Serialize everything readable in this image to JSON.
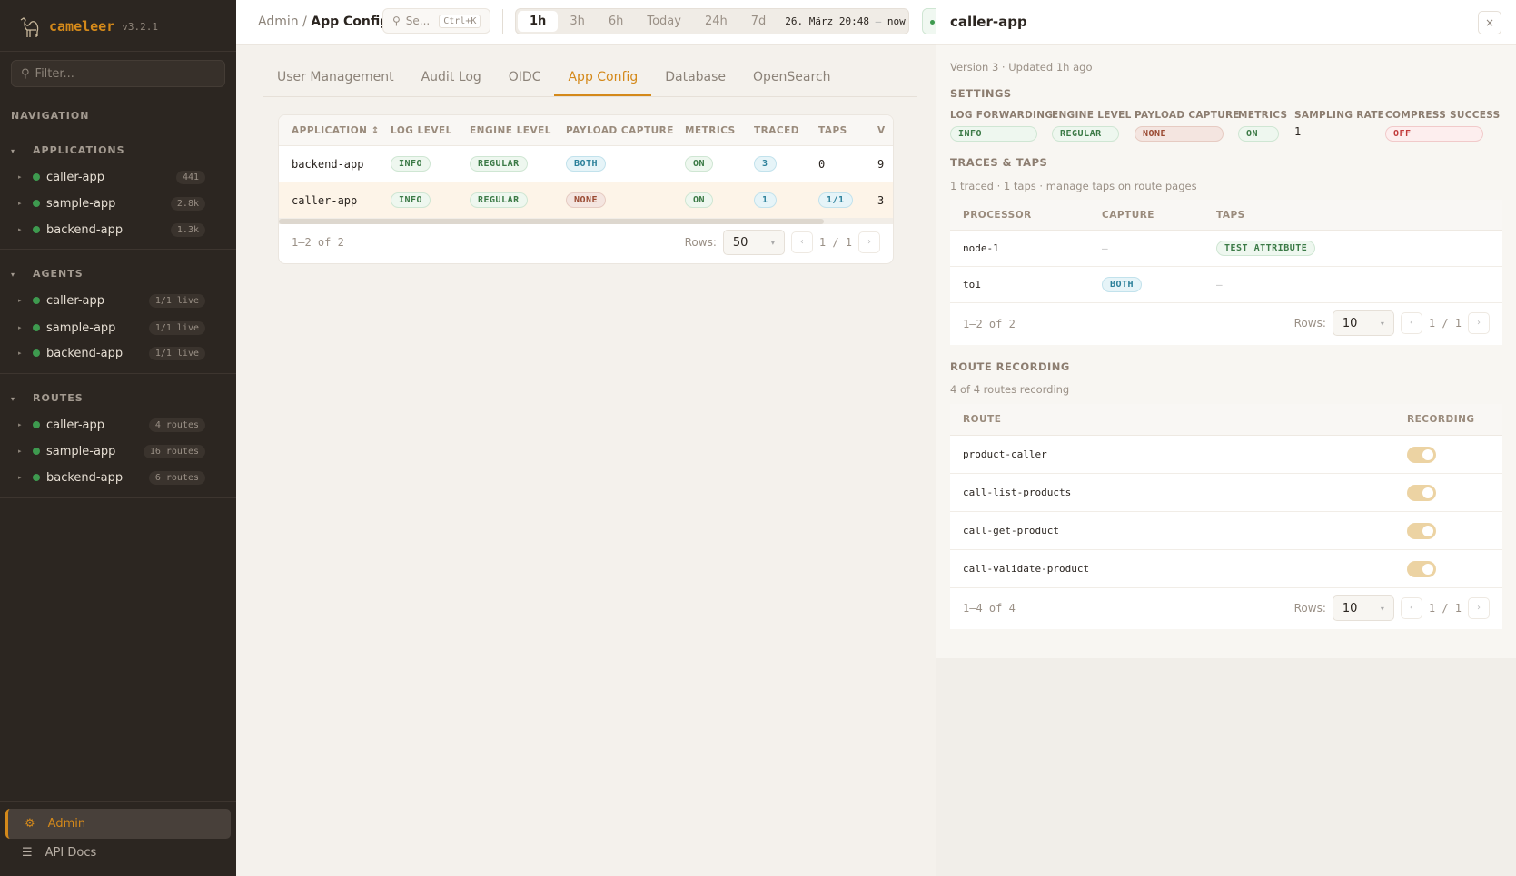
{
  "brand": {
    "name": "cameleer",
    "version": "v3.2.1"
  },
  "sidebar": {
    "filter_placeholder": "Filter...",
    "nav_label": "NAVIGATION",
    "sections": [
      {
        "title": "APPLICATIONS",
        "items": [
          {
            "label": "caller-app",
            "badge": "441"
          },
          {
            "label": "sample-app",
            "badge": "2.8k"
          },
          {
            "label": "backend-app",
            "badge": "1.3k"
          }
        ]
      },
      {
        "title": "AGENTS",
        "items": [
          {
            "label": "caller-app",
            "badge": "1/1 live"
          },
          {
            "label": "sample-app",
            "badge": "1/1 live"
          },
          {
            "label": "backend-app",
            "badge": "1/1 live"
          }
        ]
      },
      {
        "title": "ROUTES",
        "items": [
          {
            "label": "caller-app",
            "badge": "4 routes"
          },
          {
            "label": "sample-app",
            "badge": "16 routes"
          },
          {
            "label": "backend-app",
            "badge": "6 routes"
          }
        ]
      }
    ],
    "admin": "Admin",
    "api_docs": "API Docs",
    "accent": "#d4891a"
  },
  "header": {
    "breadcrumb": [
      "Admin",
      "App Config"
    ],
    "search_placeholder": "Se...",
    "search_shortcut": "Ctrl+K",
    "ranges": [
      "1h",
      "3h",
      "6h",
      "Today",
      "24h",
      "7d"
    ],
    "active_range": "1h",
    "date_from": "26. März 20:48",
    "date_sep": "—",
    "date_to": "now"
  },
  "tabs": [
    "User Management",
    "Audit Log",
    "OIDC",
    "App Config",
    "Database",
    "OpenSearch"
  ],
  "active_tab": "App Config",
  "table": {
    "columns": [
      "APPLICATION ↕",
      "LOG LEVEL",
      "ENGINE LEVEL",
      "PAYLOAD CAPTURE",
      "METRICS",
      "TRACED",
      "TAPS",
      "V"
    ],
    "rows": [
      {
        "app": "backend-app",
        "log": "INFO",
        "engine": "REGULAR",
        "payload": "BOTH",
        "metrics": "ON",
        "traced": "3",
        "taps": "0",
        "v": "9"
      },
      {
        "app": "caller-app",
        "log": "INFO",
        "engine": "REGULAR",
        "payload": "NONE",
        "metrics": "ON",
        "traced": "1",
        "taps": "1/1",
        "v": "3"
      }
    ],
    "count": "1–2 of 2",
    "rows_label": "Rows:",
    "rows_value": "50",
    "page": "1 / 1"
  },
  "panel": {
    "title": "caller-app",
    "close": "×",
    "version": "Version 3 · Updated 1h ago",
    "settings_title": "SETTINGS",
    "settings": [
      {
        "label": "LOG FORWARDING",
        "value": "INFO"
      },
      {
        "label": "ENGINE LEVEL",
        "value": "REGULAR"
      },
      {
        "label": "PAYLOAD CAPTURE",
        "value": "NONE"
      },
      {
        "label": "METRICS",
        "value": "ON"
      },
      {
        "label": "SAMPLING RATE",
        "value": "1"
      },
      {
        "label": "COMPRESS SUCCESS",
        "value": "OFF"
      }
    ],
    "traces_title": "TRACES & TAPS",
    "traces_desc": "1 traced · 1 taps · manage taps on route pages",
    "traces_columns": [
      "PROCESSOR",
      "CAPTURE",
      "TAPS"
    ],
    "traces_rows": [
      {
        "processor": "node-1",
        "capture": "—",
        "taps": "TEST ATTRIBUTE"
      },
      {
        "processor": "to1",
        "capture": "BOTH",
        "taps": "—"
      }
    ],
    "traces_count": "1–2 of 2",
    "traces_rows_value": "10",
    "traces_page": "1 / 1",
    "rec_title": "ROUTE RECORDING",
    "rec_desc": "4 of 4 routes recording",
    "rec_columns": [
      "ROUTE",
      "RECORDING"
    ],
    "routes": [
      {
        "name": "product-caller",
        "recording": true
      },
      {
        "name": "call-list-products",
        "recording": true
      },
      {
        "name": "call-get-product",
        "recording": true
      },
      {
        "name": "call-validate-product",
        "recording": true
      }
    ],
    "rec_count": "1–4 of 4",
    "rec_rows_value": "10",
    "rec_page": "1 / 1",
    "rows_label": "Rows:"
  }
}
